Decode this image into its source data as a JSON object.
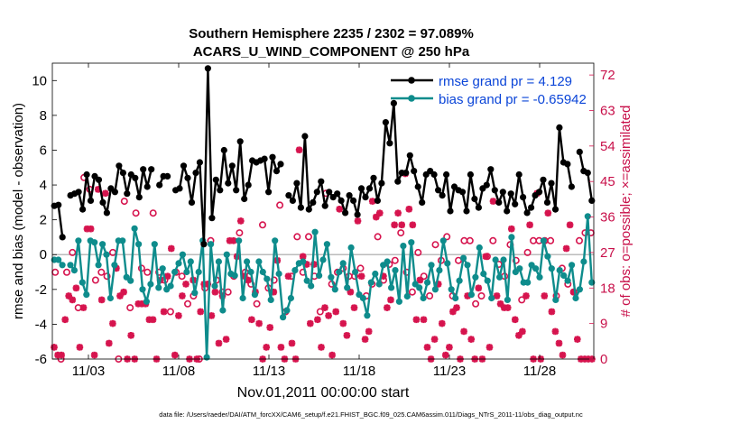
{
  "chart_data": {
    "type": "line",
    "title_line1": "Southern Hemisphere 2235 / 2302 = 97.089%",
    "title_line2": "ACARS_U_WIND_COMPONENT @ 250 hPa",
    "ylabel": "rmse and bias (model - observation)",
    "ylabel_right": "# of obs: o=possible; ×=assimilated",
    "xlabel": "Nov.01,2011 00:00:00 start",
    "footnote": "data file: /Users/raeder/DAI/ATM_forcXX/CAM6_setup/f.e21.FHIST_BGC.f09_025.CAM6assim.011/Diags_NTrS_2011-11/obs_diag_output.nc",
    "ylim": [
      -6,
      11
    ],
    "yticks": [
      "-6",
      "-4",
      "-2",
      "0",
      "2",
      "4",
      "6",
      "8",
      "10"
    ],
    "y2lim": [
      0,
      75
    ],
    "y2ticks": [
      "0",
      "9",
      "18",
      "27",
      "36",
      "45",
      "54",
      "63",
      "72"
    ],
    "x_day_range": [
      0,
      30
    ],
    "xticks": [
      {
        "day": 2,
        "label": "11/03"
      },
      {
        "day": 7,
        "label": "11/08"
      },
      {
        "day": 12,
        "label": "11/13"
      },
      {
        "day": 17,
        "label": "11/18"
      },
      {
        "day": 22,
        "label": "11/23"
      },
      {
        "day": 27,
        "label": "11/28"
      }
    ],
    "colors": {
      "rmse": "#000000",
      "bias": "#0e8c8c",
      "count": "#d6144e",
      "legend_text": "#0b45d8",
      "zero_line": "#bbbbbb"
    },
    "series": [
      {
        "name": "rmse grand pr = 4.129",
        "values": [
          2.8,
          2.85,
          1.0,
          null,
          3.4,
          3.5,
          3.6,
          2.6,
          4.6,
          3.1,
          4.5,
          4.3,
          3.0,
          2.4,
          3.8,
          3.6,
          5.1,
          4.7,
          3.5,
          4.6,
          4.4,
          3.3,
          4.9,
          3.9,
          4.9,
          null,
          4.0,
          4.5,
          4.5,
          null,
          3.7,
          3.8,
          5.1,
          4.4,
          3.0,
          4.7,
          5.3,
          0.6,
          10.7,
          2.1,
          4.3,
          3.7,
          6.0,
          4.1,
          5.1,
          3.7,
          6.5,
          3.2,
          4.0,
          5.4,
          5.3,
          5.4,
          5.5,
          3.6,
          5.6,
          4.8,
          5.2,
          null,
          3.4,
          3.1,
          4.1,
          2.7,
          6.8,
          2.6,
          3.0,
          3.6,
          4.2,
          2.8,
          3.6,
          3.3,
          3.5,
          3.1,
          2.4,
          3.4,
          3.1,
          2.3,
          3.8,
          3.3,
          3.8,
          4.4,
          3.1,
          4.1,
          7.6,
          6.4,
          8.7,
          4.2,
          4.7,
          4.7,
          5.7,
          4.8,
          3.9,
          3.0,
          4.6,
          4.8,
          4.6,
          3.7,
          3.4,
          4.6,
          2.5,
          3.9,
          3.7,
          3.6,
          2.5,
          4.6,
          3.2,
          2.7,
          3.8,
          4.0,
          4.9,
          3.7,
          3.0,
          3.6,
          2.5,
          3.5,
          2.9,
          4.6,
          3.3,
          2.4,
          2.7,
          3.4,
          3.6,
          4.3,
          3.0,
          4.1,
          2.6,
          7.3,
          5.3,
          5.2,
          3.9,
          null,
          5.9,
          4.8,
          4.7,
          3.1
        ]
      },
      {
        "name": "bias grand pr = -0.65942",
        "values": [
          -0.3,
          -0.3,
          -0.6,
          null,
          -0.6,
          -0.9,
          0.8,
          -1.6,
          -2.3,
          0.8,
          0.7,
          -0.6,
          0.6,
          0.0,
          -2.5,
          -0.6,
          0.8,
          0.8,
          -1.3,
          -1.5,
          1.5,
          0.6,
          -2.0,
          -2.7,
          -1.7,
          0.6,
          -1.9,
          -0.8,
          -2.0,
          -1.8,
          -1.0,
          -0.5,
          0.0,
          -1.0,
          -0.4,
          -2.2,
          -1.0,
          0.8,
          -5.9,
          0.6,
          -1.8,
          -0.4,
          -3.2,
          0.0,
          -1.1,
          -1.2,
          0.8,
          -2.5,
          -0.4,
          -1.0,
          -2.3,
          -0.4,
          -1.0,
          -1.4,
          -2.6,
          0.8,
          -1.1,
          -3.6,
          -3.2,
          -2.5,
          -0.9,
          -0.5,
          -0.4,
          -1.5,
          -1.8,
          1.3,
          -1.2,
          -0.3,
          0.6,
          -1.3,
          -2.0,
          -1.0,
          -0.5,
          -1.9,
          0.4,
          -1.0,
          -2.3,
          -2.5,
          -3.5,
          -1.6,
          -1.1,
          -1.7,
          -0.6,
          -0.4,
          -1.9,
          -0.9,
          -2.7,
          0.5,
          -2.4,
          0.7,
          -1.7,
          -1.9,
          -2.5,
          -1.6,
          -0.6,
          -2.0,
          -0.9,
          0.8,
          -0.5,
          -2.0,
          -2.5,
          -1.5,
          -0.2,
          -0.6,
          -2.3,
          -1.3,
          0.4,
          -1.1,
          -1.5,
          -2.5,
          -0.3,
          -1.3,
          -0.3,
          -2.6,
          1.0,
          -1.0,
          -0.8,
          -1.6,
          -1.6,
          -0.6,
          -0.8,
          -1.3,
          0.8,
          -0.1,
          -0.8,
          -2.6,
          -0.9,
          -1.2,
          -1.5,
          -0.6,
          -2.5,
          -2.0,
          -0.4,
          2.2,
          -1.6
        ]
      }
    ],
    "assimilated_counts": [
      3,
      1,
      1,
      10,
      16,
      15,
      18,
      3,
      13,
      33,
      33,
      1,
      43,
      15,
      42,
      4,
      9,
      23,
      16,
      17,
      0,
      6,
      0,
      14,
      14,
      14,
      10,
      10,
      0,
      20,
      12,
      21,
      28,
      1,
      11,
      16,
      19,
      0,
      20,
      0,
      12,
      19,
      19,
      11,
      17,
      4,
      16,
      5,
      30,
      30,
      26,
      35,
      21,
      20,
      10,
      17,
      9,
      0,
      3,
      8,
      17,
      25,
      3,
      0,
      21,
      4,
      0,
      53,
      26,
      24,
      9,
      24,
      10,
      3,
      13,
      11,
      1,
      12,
      38,
      9,
      6,
      17,
      13,
      35,
      21,
      5,
      7,
      40,
      36,
      37,
      21,
      13,
      15,
      34,
      37,
      34,
      47,
      38,
      34,
      10,
      20,
      10,
      3,
      0,
      5,
      19,
      9,
      1,
      3,
      12,
      13,
      0,
      7,
      16,
      5,
      0,
      18,
      0,
      26,
      3,
      40,
      16,
      14,
      13,
      13,
      33,
      10,
      6,
      7,
      16,
      34,
      0,
      42,
      0,
      16,
      37,
      12,
      7,
      4,
      1,
      28,
      34,
      17,
      5,
      0,
      0,
      0,
      0
    ],
    "possible_counts": [
      22,
      0,
      22,
      27,
      13,
      46,
      43,
      20,
      22,
      21,
      27,
      0,
      40,
      13,
      37,
      23,
      22,
      37,
      22,
      20,
      12,
      22,
      21,
      14,
      16,
      0,
      18,
      30,
      20,
      17,
      17,
      21,
      32,
      22,
      19,
      14,
      34,
      18,
      20,
      39,
      12,
      21,
      31,
      22,
      31,
      21,
      12,
      42,
      19,
      22,
      23,
      21,
      21,
      23,
      16,
      19,
      31,
      20,
      24,
      25,
      32,
      22,
      17,
      27,
      21,
      16,
      29,
      25,
      31,
      16,
      25,
      30,
      30,
      14,
      16,
      26,
      30,
      24,
      21,
      29,
      25,
      15,
      27,
      30,
      30,
      30,
      30,
      16,
      23,
      19,
      17,
      30,
      32,
      32
    ]
  }
}
